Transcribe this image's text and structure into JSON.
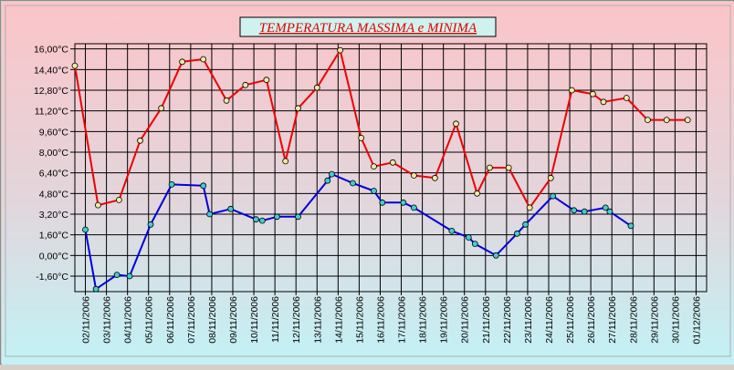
{
  "chart_data": {
    "type": "line",
    "title": "TEMPERATURA MASSIMA e MINIMA",
    "y_tick_labels": [
      "16,00°C",
      "14,40°C",
      "12,80°C",
      "11,20°C",
      "9,60°C",
      "8,00°C",
      "6,40°C",
      "4,80°C",
      "3,20°C",
      "1,60°C",
      "0,00°C",
      "-1,60°C"
    ],
    "x_tick_labels": [
      "02/11/2006",
      "03/11/2006",
      "04/11/2006",
      "05/11/2006",
      "06/11/2006",
      "07/11/2006",
      "08/11/2006",
      "09/11/2006",
      "10/11/2006",
      "11/11/2006",
      "12/11/2006",
      "13/11/2006",
      "14/11/2006",
      "15/11/2006",
      "16/11/2006",
      "17/11/2006",
      "18/11/2006",
      "19/11/2006",
      "20/11/2006",
      "21/11/2006",
      "22/11/2006",
      "23/11/2006",
      "24/11/2006",
      "25/11/2006",
      "26/11/2006",
      "27/11/2006",
      "28/11/2006",
      "29/11/2006",
      "30/11/2006",
      "01/12/2006"
    ],
    "x_domain": [
      1.5,
      31.5
    ],
    "y_range": [
      -2.8,
      16.4
    ],
    "grid": true,
    "legend": "none",
    "series": [
      {
        "color": "#ee0000",
        "marker_fill": "#f2e8a0",
        "x": [
          1.5,
          2.6,
          3.6,
          4.6,
          5.6,
          6.6,
          7.6,
          8.7,
          9.6,
          10.6,
          11.5,
          12.1,
          13.0,
          14.1,
          15.1,
          15.7,
          16.6,
          17.6,
          18.6,
          19.6,
          20.6,
          21.2,
          22.1,
          23.1,
          24.1,
          25.1,
          26.1,
          26.6,
          27.7,
          28.7,
          29.6,
          30.6
        ],
        "y": [
          14.7,
          3.9,
          4.3,
          8.9,
          11.4,
          15.0,
          15.2,
          12.0,
          13.2,
          13.6,
          7.3,
          11.4,
          13.0,
          15.9,
          9.1,
          6.9,
          7.2,
          6.2,
          6.0,
          10.2,
          4.8,
          6.8,
          6.8,
          3.7,
          6.0,
          12.8,
          12.5,
          11.9,
          12.2,
          10.5,
          10.5,
          10.5
        ]
      },
      {
        "color": "#0000dd",
        "marker_fill": "#3fcfcf",
        "x": [
          2.0,
          2.5,
          3.5,
          4.1,
          5.1,
          6.1,
          7.6,
          7.9,
          8.9,
          10.1,
          10.4,
          11.1,
          12.1,
          13.5,
          13.7,
          14.7,
          15.7,
          16.1,
          17.1,
          17.6,
          19.4,
          20.2,
          20.5,
          21.5,
          22.5,
          22.9,
          24.2,
          25.2,
          25.7,
          26.7,
          26.9,
          27.9
        ],
        "y": [
          2.0,
          -2.6,
          -1.5,
          -1.6,
          2.4,
          5.5,
          5.4,
          3.2,
          3.6,
          2.8,
          2.7,
          3.0,
          3.0,
          5.8,
          6.3,
          5.6,
          5.0,
          4.1,
          4.1,
          3.7,
          1.9,
          1.4,
          0.9,
          0.0,
          1.7,
          2.4,
          4.6,
          3.5,
          3.4,
          3.7,
          3.4,
          2.3
        ]
      }
    ]
  }
}
